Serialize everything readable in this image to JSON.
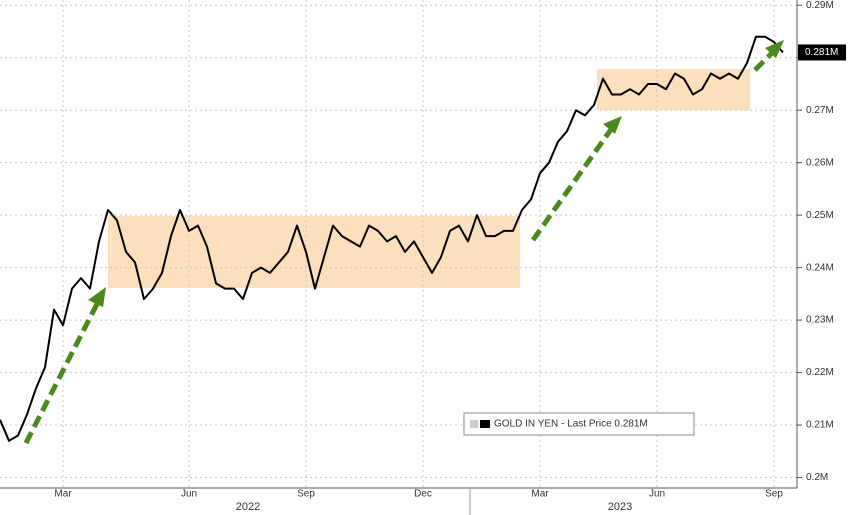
{
  "chart_data": {
    "type": "line",
    "categories": [
      null,
      null,
      null,
      null,
      null,
      null,
      null,
      "Mar",
      null,
      null,
      null,
      null,
      null,
      null,
      null,
      null,
      null,
      null,
      null,
      null,
      null,
      "Jun",
      null,
      null,
      null,
      null,
      null,
      null,
      null,
      null,
      null,
      null,
      null,
      null,
      "Sep",
      null,
      null,
      null,
      null,
      null,
      null,
      null,
      null,
      null,
      null,
      null,
      null,
      "Dec",
      null,
      null,
      null,
      null,
      null,
      null,
      null,
      null,
      null,
      null,
      null,
      null,
      "Mar",
      null,
      null,
      null,
      null,
      null,
      null,
      null,
      null,
      null,
      null,
      null,
      null,
      "Jun",
      null,
      null,
      null,
      null,
      null,
      null,
      null,
      null,
      null,
      null,
      null,
      null,
      "Sep",
      null
    ],
    "x_group_labels": [
      "2022",
      "2023"
    ],
    "series": [
      {
        "name": "GOLD IN YEN - Last Price 0.281M",
        "color": "#000000",
        "values": [
          0.211,
          0.207,
          0.208,
          0.212,
          0.217,
          0.221,
          0.232,
          0.229,
          0.236,
          0.238,
          0.236,
          0.245,
          0.251,
          0.249,
          0.243,
          0.241,
          0.234,
          0.236,
          0.239,
          0.246,
          0.251,
          0.247,
          0.248,
          0.244,
          0.237,
          0.236,
          0.236,
          0.234,
          0.239,
          0.24,
          0.239,
          0.241,
          0.243,
          0.248,
          0.243,
          0.236,
          0.242,
          0.248,
          0.246,
          0.245,
          0.244,
          0.248,
          0.247,
          0.245,
          0.246,
          0.243,
          0.245,
          0.242,
          0.239,
          0.242,
          0.247,
          0.248,
          0.245,
          0.25,
          0.246,
          0.246,
          0.247,
          0.247,
          0.251,
          0.253,
          0.258,
          0.26,
          0.264,
          0.266,
          0.27,
          0.269,
          0.271,
          0.276,
          0.273,
          0.273,
          0.274,
          0.273,
          0.275,
          0.275,
          0.274,
          0.277,
          0.276,
          0.273,
          0.274,
          0.277,
          0.276,
          0.277,
          0.276,
          0.279,
          0.284,
          0.284,
          0.283,
          0.281
        ]
      }
    ],
    "last_label": {
      "value": 0.281,
      "label": "0.281M"
    },
    "ylim": [
      0.198,
      0.291
    ],
    "yticks": [
      {
        "value": 0.2,
        "label": "0.2M"
      },
      {
        "value": 0.21,
        "label": "0.21M"
      },
      {
        "value": 0.22,
        "label": "0.22M"
      },
      {
        "value": 0.23,
        "label": "0.23M"
      },
      {
        "value": 0.24,
        "label": "0.24M"
      },
      {
        "value": 0.25,
        "label": "0.25M"
      },
      {
        "value": 0.26,
        "label": "0.26M"
      },
      {
        "value": 0.27,
        "label": "0.27M"
      },
      {
        "value": 0.28,
        "label": "0.28M"
      },
      {
        "value": 0.29,
        "label": "0.29M"
      }
    ],
    "grid": true
  }
}
